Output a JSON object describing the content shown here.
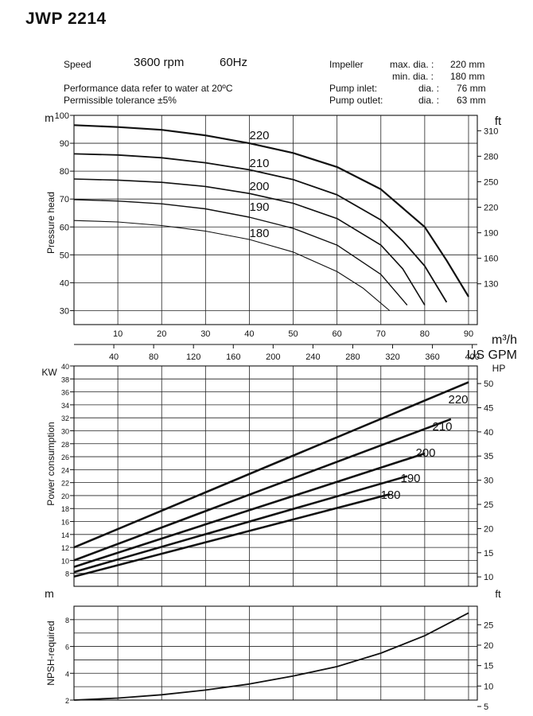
{
  "title": "JWP 2214",
  "header": {
    "speed_label": "Speed",
    "speed_rpm": "3600 rpm",
    "speed_hz": "60Hz",
    "note1": "Performance data refer to water at 20ºC",
    "note2": "Permissible tolerance ±5%",
    "impeller_label": "Impeller",
    "max_dia_label": "max. dia. :",
    "max_dia_value": "220 mm",
    "min_dia_label": "min. dia. :",
    "min_dia_value": "180 mm",
    "inlet_label": "Pump inlet:",
    "inlet_dia_label": "dia. :",
    "inlet_value": "76 mm",
    "outlet_label": "Pump outlet:",
    "outlet_dia_label": "dia. :",
    "outlet_value": "63 mm"
  },
  "chart_data": [
    {
      "type": "line",
      "ylabel": "Pressure head",
      "y_unit_left": "m",
      "y_unit_right": "ft",
      "ylim": [
        25,
        100
      ],
      "xlim": [
        0,
        92
      ],
      "x_unit": "m³/h",
      "x_unit_secondary": "US GPM",
      "x_ticks": [
        10,
        20,
        30,
        40,
        50,
        60,
        70,
        80,
        90
      ],
      "x_ticks_secondary": [
        40,
        80,
        120,
        160,
        200,
        240,
        280,
        320,
        360,
        400
      ],
      "y_ticks_left": [
        30,
        40,
        50,
        60,
        70,
        80,
        90,
        100
      ],
      "y_ticks_right": [
        130,
        160,
        190,
        220,
        250,
        280,
        310
      ],
      "series": [
        {
          "name": "220",
          "x": [
            0,
            10,
            20,
            30,
            40,
            50,
            60,
            70,
            80,
            85,
            90
          ],
          "y": [
            96.5,
            95.8,
            94.8,
            92.8,
            90,
            86.5,
            81.5,
            73.5,
            60,
            48,
            35
          ]
        },
        {
          "name": "210",
          "x": [
            0,
            10,
            20,
            30,
            40,
            50,
            60,
            70,
            75,
            80,
            85
          ],
          "y": [
            86.2,
            85.8,
            84.8,
            83,
            80.5,
            77,
            71.5,
            62.5,
            55,
            46,
            33
          ]
        },
        {
          "name": "200",
          "x": [
            0,
            10,
            20,
            30,
            40,
            50,
            60,
            70,
            75,
            80
          ],
          "y": [
            77.2,
            76.8,
            76,
            74.5,
            72,
            68.5,
            63,
            53.5,
            45,
            32
          ]
        },
        {
          "name": "190",
          "x": [
            0,
            10,
            20,
            30,
            40,
            50,
            60,
            70,
            76
          ],
          "y": [
            69.8,
            69.3,
            68.3,
            66.5,
            63.5,
            59.5,
            53.5,
            43,
            32
          ]
        },
        {
          "name": "180",
          "x": [
            0,
            10,
            20,
            30,
            40,
            50,
            60,
            66,
            72
          ],
          "y": [
            62.3,
            61.8,
            60.5,
            58.5,
            55.5,
            51,
            44,
            38,
            30
          ]
        }
      ]
    },
    {
      "type": "line",
      "ylabel": "Power consumption",
      "y_unit_left": "KW",
      "y_unit_right": "HP",
      "ylim": [
        6,
        40
      ],
      "xlim": [
        0,
        92
      ],
      "y_ticks_left": [
        8,
        10,
        12,
        14,
        16,
        18,
        20,
        22,
        24,
        26,
        28,
        30,
        32,
        34,
        36,
        38,
        40
      ],
      "y_ticks_right": [
        10,
        15,
        20,
        25,
        30,
        35,
        40,
        45,
        50
      ],
      "series": [
        {
          "name": "220",
          "x": [
            0,
            90
          ],
          "y": [
            12,
            37.5
          ]
        },
        {
          "name": "210",
          "x": [
            0,
            86
          ],
          "y": [
            10,
            31.8
          ]
        },
        {
          "name": "200",
          "x": [
            0,
            80
          ],
          "y": [
            9,
            26.5
          ]
        },
        {
          "name": "190",
          "x": [
            0,
            76
          ],
          "y": [
            8.2,
            23
          ]
        },
        {
          "name": "180",
          "x": [
            0,
            72
          ],
          "y": [
            7.5,
            20.2
          ]
        }
      ]
    },
    {
      "type": "line",
      "ylabel": "NPSH-required",
      "y_unit_left": "m",
      "y_unit_right": "ft",
      "ylim": [
        2,
        9
      ],
      "xlim": [
        0,
        92
      ],
      "y_ticks_left": [
        2,
        4,
        6,
        8
      ],
      "y_ticks_right": [
        5,
        10,
        15,
        20,
        25
      ],
      "series": [
        {
          "x": [
            0,
            10,
            20,
            30,
            40,
            50,
            60,
            70,
            80,
            90
          ],
          "y": [
            2,
            2.15,
            2.4,
            2.75,
            3.2,
            3.8,
            4.5,
            5.5,
            6.8,
            8.5
          ]
        }
      ]
    }
  ]
}
